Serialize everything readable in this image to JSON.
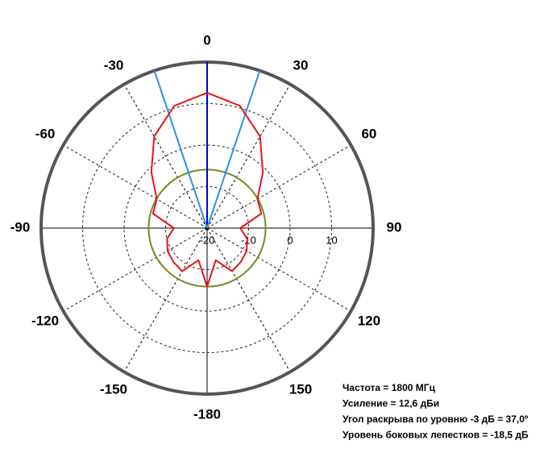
{
  "chart_data": {
    "type": "polar",
    "rlim": [
      -20,
      20
    ],
    "rticks": [
      -20,
      -10,
      0,
      10
    ],
    "angle_ticks": [
      0,
      30,
      60,
      90,
      120,
      150,
      -180,
      -150,
      -120,
      -90,
      -60,
      -30
    ],
    "grid": true,
    "theta": [
      0,
      15,
      30,
      45,
      60,
      75,
      90,
      105,
      120,
      135,
      150,
      165,
      180,
      195,
      210,
      225,
      240,
      255,
      270,
      285,
      300,
      315,
      330,
      345
    ],
    "series": [
      {
        "color": "#e8141c",
        "values": [
          12.6,
          10.5,
          5.5,
          -1,
          -6,
          -6.5,
          -12,
          -10,
          -9,
          -8.5,
          -8,
          -12,
          -5.9,
          -12,
          -8,
          -8.5,
          -9,
          -10,
          -12,
          -6.5,
          -6,
          -1,
          5.5,
          10.5
        ]
      }
    ],
    "sidelobe_circle": {
      "value": -5.9,
      "color": "#6b8e23"
    },
    "beam_lines": [
      {
        "angle": 0,
        "color": "#0000cc"
      },
      {
        "angle": -18.5,
        "color": "#2e8fe8"
      },
      {
        "angle": 18.5,
        "color": "#2e8fe8"
      }
    ],
    "annotations": [
      "Частота = 1800 МГц",
      "Усиление = 12,6 дБи",
      "Угол раскрыва по уровню -3 дБ = 37,0º",
      "Уровень боковых лепестков = -18,5 дБ"
    ]
  }
}
